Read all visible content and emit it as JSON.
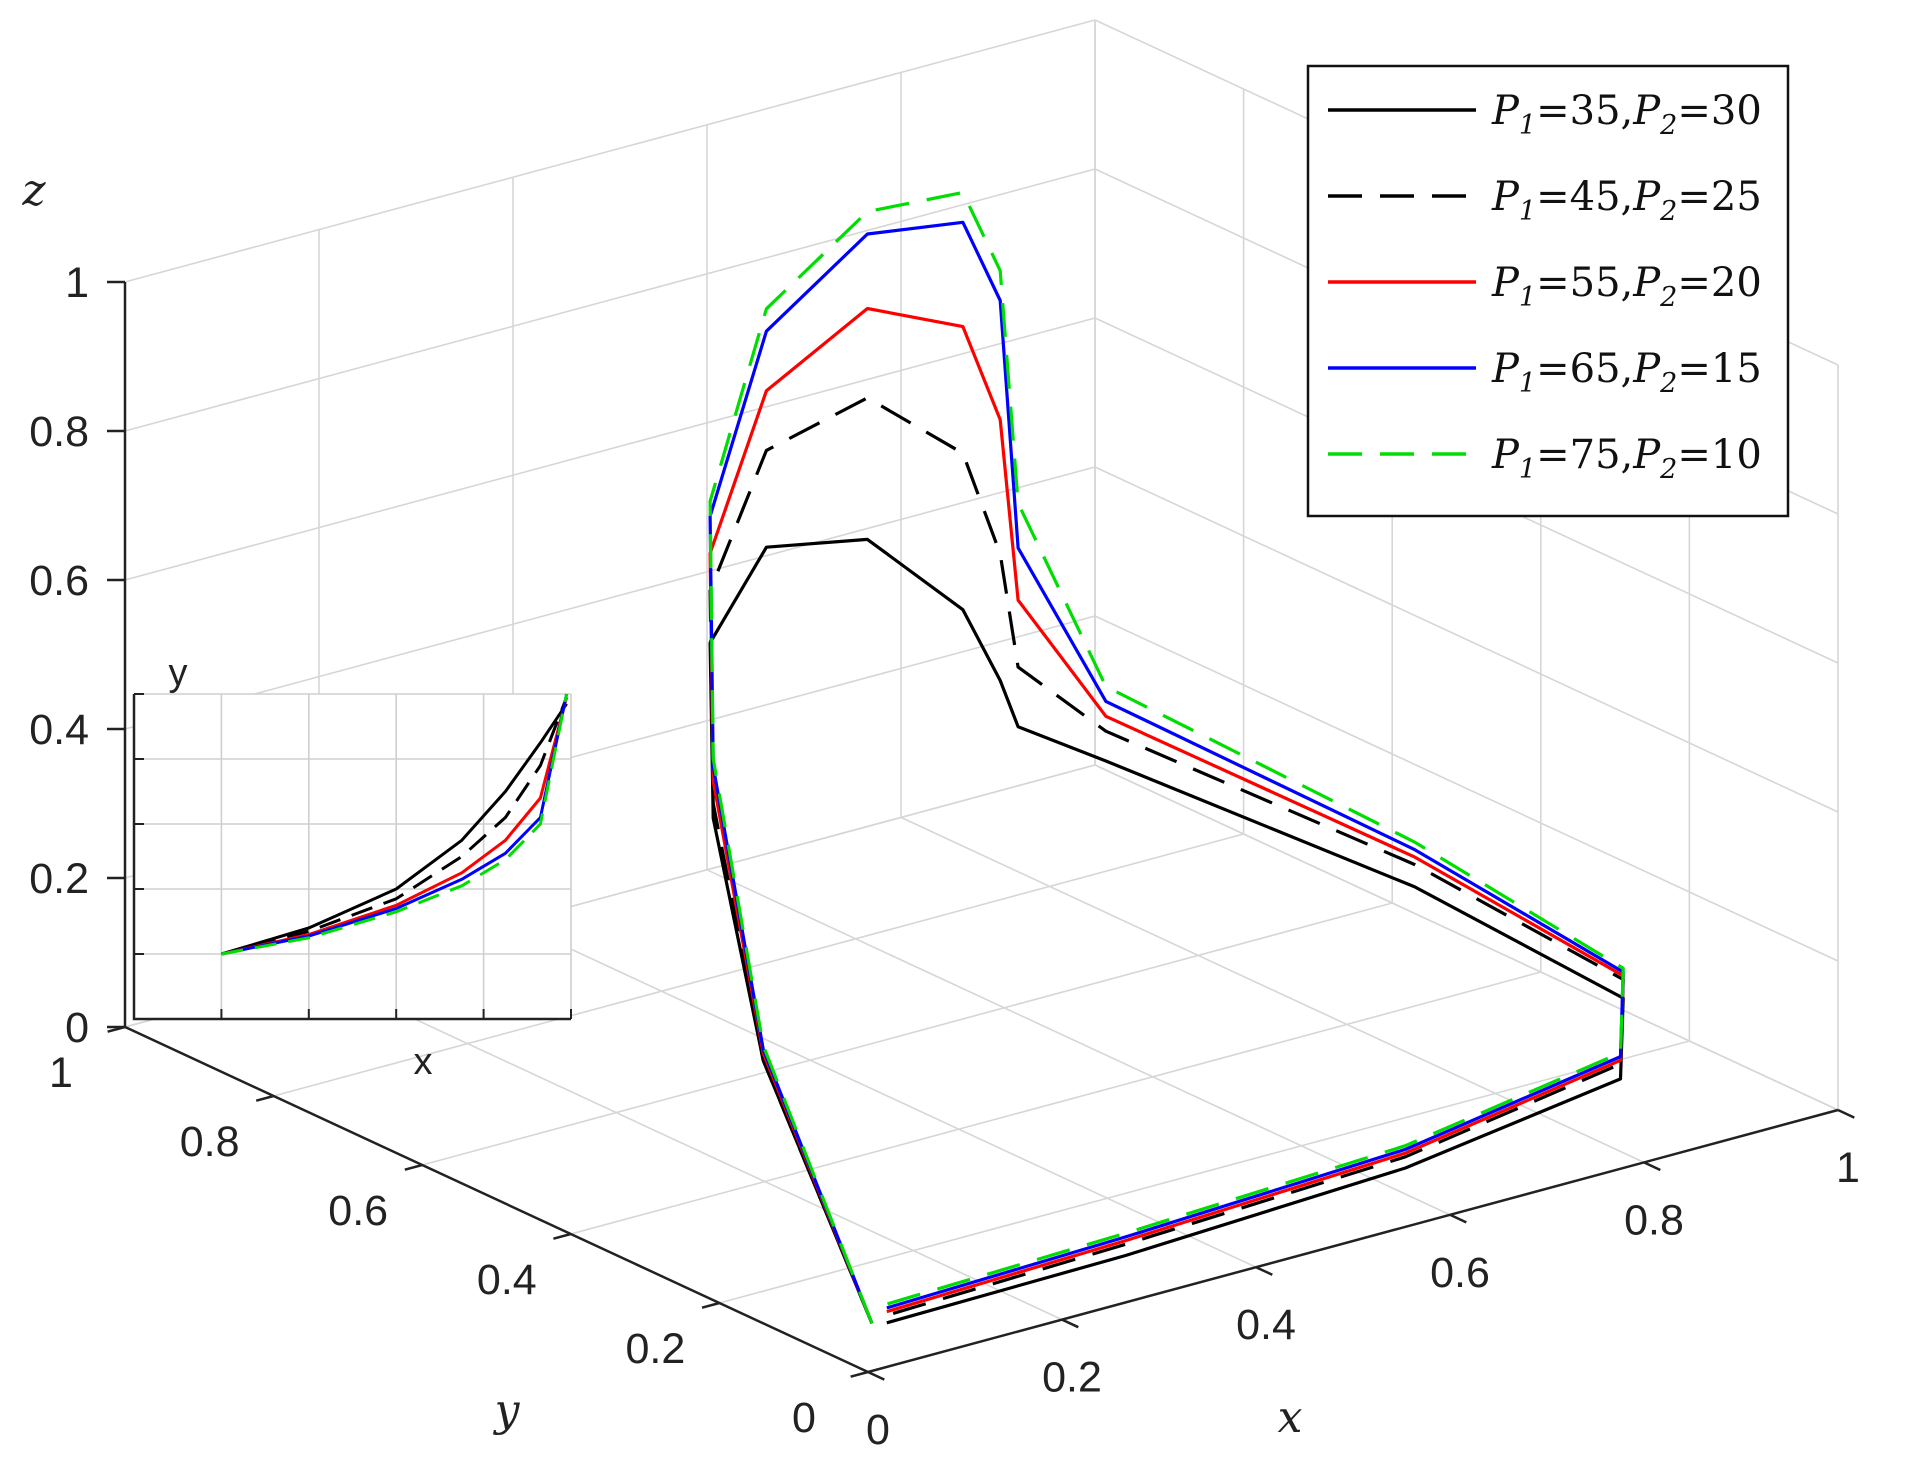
{
  "chart_data": [
    {
      "type": "line",
      "projection": "3d",
      "title": "",
      "xlabel": "x",
      "ylabel": "y",
      "zlabel": "z",
      "xlim": [
        0,
        1
      ],
      "ylim": [
        0,
        1
      ],
      "zlim": [
        0,
        1
      ],
      "xticks": [
        "0",
        "0.2",
        "0.4",
        "0.6",
        "0.8",
        "1"
      ],
      "yticks": [
        "0",
        "0.2",
        "0.4",
        "0.6",
        "0.8",
        "1"
      ],
      "zticks": [
        "0",
        "0.2",
        "0.4",
        "0.6",
        "0.8",
        "1"
      ],
      "grid": true,
      "legend_position": "top-right",
      "series": [
        {
          "legend": {
            "p1_symbol": "P",
            "p1_sub": "1",
            "p1_value": "=35,",
            "p2_symbol": "P",
            "p2_sub": "2",
            "p2_value": "=30"
          },
          "color": "#000000",
          "dash": "solid",
          "points": [
            [
              0.05,
              0.06,
              0.02
            ],
            [
              0.16,
              0.35,
              0.2
            ],
            [
              0.3,
              0.6,
              0.36
            ],
            [
              0.45,
              0.8,
              0.45
            ],
            [
              0.6,
              0.92,
              0.47
            ],
            [
              0.75,
              0.98,
              0.4
            ],
            [
              0.86,
              0.995,
              0.26
            ],
            [
              0.9,
              0.997,
              0.15
            ],
            [
              0.92,
              0.999,
              0.08
            ],
            [
              0.95,
              0.92,
              0.06
            ],
            [
              0.985,
              0.55,
              0.05
            ],
            [
              0.97,
              0.25,
              0.045
            ],
            [
              0.86,
              0.11,
              0.04
            ],
            [
              0.6,
              0.06,
              0.035
            ],
            [
              0.3,
              0.045,
              0.03
            ],
            [
              0.05,
              0.04,
              0.03
            ]
          ]
        },
        {
          "legend": {
            "p1_symbol": "P",
            "p1_sub": "1",
            "p1_value": "=45,",
            "p2_symbol": "P",
            "p2_sub": "2",
            "p2_value": "=25"
          },
          "color": "#000000",
          "dash": "dashed",
          "points": [
            [
              0.05,
              0.06,
              0.02
            ],
            [
              0.16,
              0.35,
              0.2
            ],
            [
              0.3,
              0.6,
              0.38
            ],
            [
              0.45,
              0.8,
              0.52
            ],
            [
              0.6,
              0.92,
              0.6
            ],
            [
              0.75,
              0.98,
              0.59
            ],
            [
              0.86,
              0.995,
              0.47
            ],
            [
              0.9,
              0.997,
              0.32
            ],
            [
              0.92,
              0.999,
              0.16
            ],
            [
              0.95,
              0.92,
              0.1
            ],
            [
              0.985,
              0.55,
              0.08
            ],
            [
              0.97,
              0.25,
              0.07
            ],
            [
              0.86,
              0.11,
              0.06
            ],
            [
              0.6,
              0.06,
              0.05
            ],
            [
              0.3,
              0.045,
              0.045
            ],
            [
              0.05,
              0.04,
              0.04
            ]
          ]
        },
        {
          "legend": {
            "p1_symbol": "P",
            "p1_sub": "1",
            "p1_value": "=55,",
            "p2_symbol": "P",
            "p2_sub": "2",
            "p2_value": "=20"
          },
          "color": "#ff0000",
          "dash": "solid",
          "points": [
            [
              0.05,
              0.06,
              0.02
            ],
            [
              0.16,
              0.35,
              0.21
            ],
            [
              0.3,
              0.6,
              0.41
            ],
            [
              0.45,
              0.8,
              0.57
            ],
            [
              0.6,
              0.92,
              0.68
            ],
            [
              0.75,
              0.98,
              0.71
            ],
            [
              0.86,
              0.995,
              0.64
            ],
            [
              0.9,
              0.997,
              0.5
            ],
            [
              0.92,
              0.999,
              0.25
            ],
            [
              0.95,
              0.92,
              0.12
            ],
            [
              0.985,
              0.55,
              0.09
            ],
            [
              0.97,
              0.25,
              0.075
            ],
            [
              0.86,
              0.11,
              0.065
            ],
            [
              0.6,
              0.06,
              0.055
            ],
            [
              0.3,
              0.045,
              0.05
            ],
            [
              0.05,
              0.04,
              0.045
            ]
          ]
        },
        {
          "legend": {
            "p1_symbol": "P",
            "p1_sub": "1",
            "p1_value": "=65,",
            "p2_symbol": "P",
            "p2_sub": "2",
            "p2_value": "=15"
          },
          "color": "#0000ff",
          "dash": "solid",
          "points": [
            [
              0.05,
              0.06,
              0.02
            ],
            [
              0.16,
              0.35,
              0.215
            ],
            [
              0.3,
              0.6,
              0.43
            ],
            [
              0.45,
              0.8,
              0.62
            ],
            [
              0.6,
              0.92,
              0.76
            ],
            [
              0.75,
              0.98,
              0.81
            ],
            [
              0.86,
              0.995,
              0.78
            ],
            [
              0.9,
              0.997,
              0.66
            ],
            [
              0.92,
              0.999,
              0.32
            ],
            [
              0.95,
              0.92,
              0.14
            ],
            [
              0.985,
              0.55,
              0.1
            ],
            [
              0.97,
              0.25,
              0.08
            ],
            [
              0.86,
              0.11,
              0.07
            ],
            [
              0.6,
              0.06,
              0.06
            ],
            [
              0.3,
              0.045,
              0.055
            ],
            [
              0.05,
              0.04,
              0.05
            ]
          ]
        },
        {
          "legend": {
            "p1_symbol": "P",
            "p1_sub": "1",
            "p1_value": "=75,",
            "p2_symbol": "P",
            "p2_sub": "2",
            "p2_value": "=10"
          },
          "color": "#00dd00",
          "dash": "dashed",
          "points": [
            [
              0.05,
              0.06,
              0.02
            ],
            [
              0.16,
              0.35,
              0.22
            ],
            [
              0.3,
              0.6,
              0.44
            ],
            [
              0.45,
              0.8,
              0.64
            ],
            [
              0.6,
              0.92,
              0.79
            ],
            [
              0.75,
              0.98,
              0.84
            ],
            [
              0.86,
              0.995,
              0.82
            ],
            [
              0.9,
              0.997,
              0.7
            ],
            [
              0.92,
              0.999,
              0.38
            ],
            [
              0.95,
              0.92,
              0.16
            ],
            [
              0.985,
              0.55,
              0.11
            ],
            [
              0.97,
              0.25,
              0.085
            ],
            [
              0.86,
              0.11,
              0.075
            ],
            [
              0.6,
              0.06,
              0.065
            ],
            [
              0.3,
              0.045,
              0.06
            ],
            [
              0.05,
              0.04,
              0.055
            ]
          ]
        }
      ]
    },
    {
      "type": "line",
      "role": "inset",
      "title": "",
      "xlabel": "x",
      "ylabel": "y",
      "xlim": [
        0,
        1
      ],
      "ylim": [
        0,
        1
      ],
      "grid": true,
      "series": [
        {
          "color": "#000000",
          "dash": "solid",
          "points": [
            [
              0.2,
              0.2
            ],
            [
              0.4,
              0.28
            ],
            [
              0.6,
              0.4
            ],
            [
              0.75,
              0.55
            ],
            [
              0.85,
              0.7
            ],
            [
              0.93,
              0.85
            ],
            [
              0.99,
              0.97
            ]
          ]
        },
        {
          "color": "#000000",
          "dash": "dashed",
          "points": [
            [
              0.2,
              0.2
            ],
            [
              0.4,
              0.27
            ],
            [
              0.6,
              0.37
            ],
            [
              0.75,
              0.5
            ],
            [
              0.85,
              0.62
            ],
            [
              0.93,
              0.78
            ],
            [
              0.99,
              0.99
            ]
          ]
        },
        {
          "color": "#ff0000",
          "dash": "solid",
          "points": [
            [
              0.2,
              0.2
            ],
            [
              0.4,
              0.26
            ],
            [
              0.6,
              0.35
            ],
            [
              0.75,
              0.45
            ],
            [
              0.85,
              0.55
            ],
            [
              0.93,
              0.68
            ],
            [
              0.99,
              0.99
            ]
          ]
        },
        {
          "color": "#0000ff",
          "dash": "solid",
          "points": [
            [
              0.2,
              0.2
            ],
            [
              0.4,
              0.255
            ],
            [
              0.6,
              0.34
            ],
            [
              0.75,
              0.43
            ],
            [
              0.85,
              0.51
            ],
            [
              0.93,
              0.62
            ],
            [
              0.99,
              1.0
            ]
          ]
        },
        {
          "color": "#00dd00",
          "dash": "dashed",
          "points": [
            [
              0.2,
              0.2
            ],
            [
              0.4,
              0.25
            ],
            [
              0.6,
              0.33
            ],
            [
              0.75,
              0.41
            ],
            [
              0.85,
              0.49
            ],
            [
              0.93,
              0.6
            ],
            [
              0.99,
              1.0
            ]
          ]
        }
      ]
    }
  ]
}
